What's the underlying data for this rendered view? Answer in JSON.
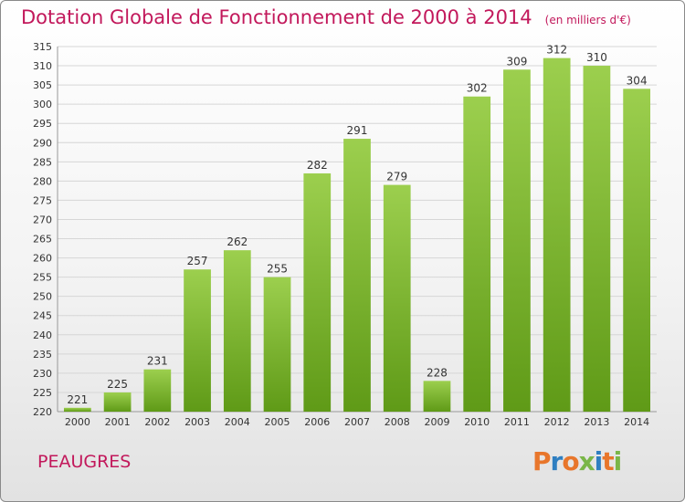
{
  "header": {
    "title": "Dotation Globale de Fonctionnement de 2000 à 2014",
    "unit": "(en milliers d'€)"
  },
  "footer": {
    "commune": "PEAUGRES",
    "logo": "Proxiti"
  },
  "colors": {
    "title": "#c2185b",
    "bar_light": "#9ccf4e",
    "bar_dark": "#5f9a17",
    "grid": "#d6d6d6",
    "logo": [
      "#e8762b",
      "#2f7fc1",
      "#e8762b",
      "#7ab648",
      "#2f7fc1",
      "#e8762b",
      "#7ab648"
    ]
  },
  "chart_data": {
    "type": "bar",
    "title": "Dotation Globale de Fonctionnement de 2000 à 2014",
    "subtitle": "(en milliers d'€)",
    "categories": [
      "2000",
      "2001",
      "2002",
      "2003",
      "2004",
      "2005",
      "2006",
      "2007",
      "2008",
      "2009",
      "2010",
      "2011",
      "2012",
      "2013",
      "2014"
    ],
    "values": [
      221,
      225,
      231,
      257,
      262,
      255,
      282,
      291,
      279,
      228,
      302,
      309,
      312,
      310,
      304
    ],
    "ylim": [
      220,
      315
    ],
    "yticks": [
      220,
      225,
      230,
      235,
      240,
      245,
      250,
      255,
      260,
      265,
      270,
      275,
      280,
      285,
      290,
      295,
      300,
      305,
      310,
      315
    ],
    "grid": true,
    "data_labels": true
  }
}
